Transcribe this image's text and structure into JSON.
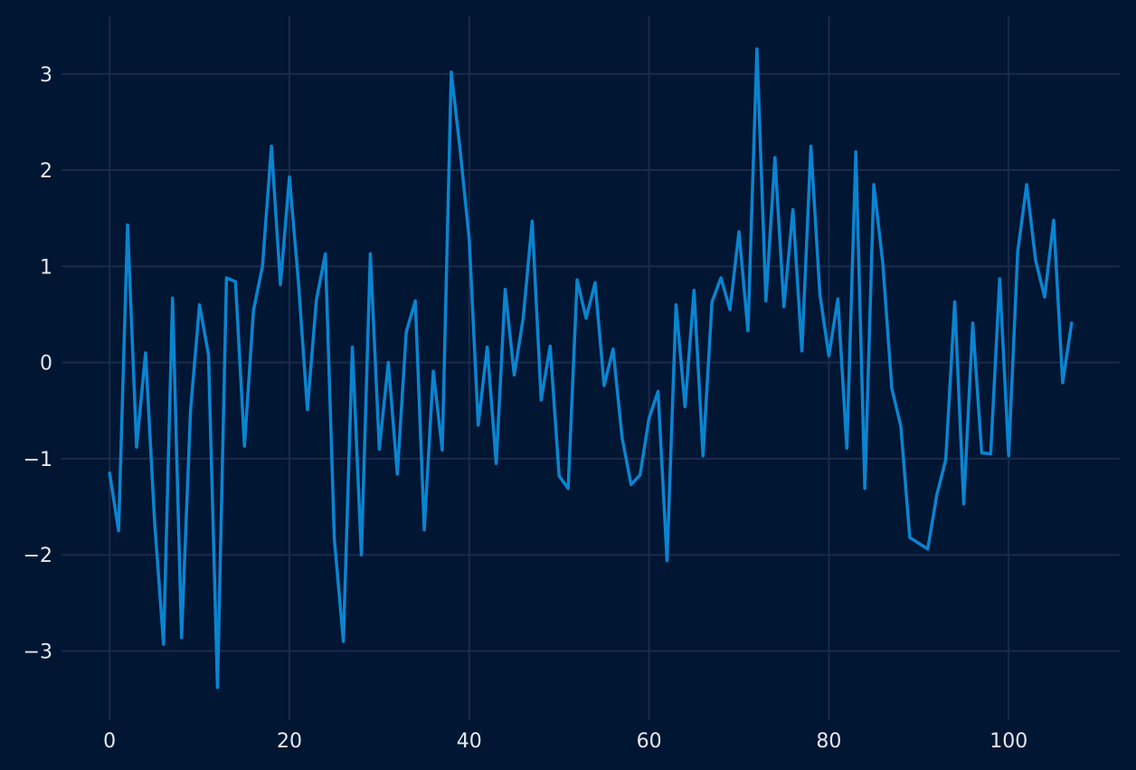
{
  "colors": {
    "background": "#001633",
    "grid": "#1c2a4a",
    "tick_text": "#e6e9ef",
    "series": "#0a84d0"
  },
  "chart_data": {
    "type": "line",
    "title": "",
    "xlabel": "",
    "ylabel": "",
    "xlim": [
      -5.35,
      112.35
    ],
    "ylim": [
      -3.72,
      3.6
    ],
    "xticks": [
      0,
      20,
      40,
      60,
      80,
      100
    ],
    "yticks": [
      -3,
      -2,
      -1,
      0,
      1,
      2,
      3
    ],
    "xtick_labels": [
      "0",
      "20",
      "40",
      "60",
      "80",
      "100"
    ],
    "ytick_labels": [
      "−3",
      "−2",
      "−1",
      "0",
      "1",
      "2",
      "3"
    ],
    "grid": true,
    "legend": "none",
    "series": [
      {
        "values": [
          -1.15,
          -1.75,
          1.43,
          -0.88,
          0.1,
          -1.65,
          -2.93,
          0.67,
          -2.86,
          -0.5,
          0.6,
          0.08,
          -3.38,
          0.88,
          0.84,
          -0.87,
          0.54,
          1.0,
          2.25,
          0.81,
          1.93,
          0.84,
          -0.49,
          0.65,
          1.13,
          -1.84,
          -2.9,
          0.16,
          -2.0,
          1.13,
          -0.9,
          0.0,
          -1.16,
          0.32,
          0.64,
          -1.74,
          -0.09,
          -0.91,
          3.02,
          2.2,
          1.28,
          -0.65,
          0.16,
          -1.05,
          0.76,
          -0.13,
          0.46,
          1.47,
          -0.39,
          0.17,
          -1.18,
          -1.31,
          0.86,
          0.46,
          0.83,
          -0.24,
          0.14,
          -0.78,
          -1.27,
          -1.17,
          -0.58,
          -0.3,
          -2.06,
          0.6,
          -0.46,
          0.75,
          -0.97,
          0.63,
          0.88,
          0.55,
          1.36,
          0.33,
          3.26,
          0.64,
          2.13,
          0.58,
          1.59,
          0.12,
          2.25,
          0.71,
          0.07,
          0.66,
          -0.89,
          2.19,
          -1.31,
          1.85,
          1.03,
          -0.27,
          -0.66,
          -1.82,
          -1.88,
          -1.94,
          -1.38,
          -1.01,
          0.63,
          -1.47,
          0.41,
          -0.94,
          -0.95,
          0.87,
          -0.97,
          1.15,
          1.85,
          1.06,
          0.68,
          1.48,
          -0.21,
          0.41
        ]
      }
    ]
  }
}
